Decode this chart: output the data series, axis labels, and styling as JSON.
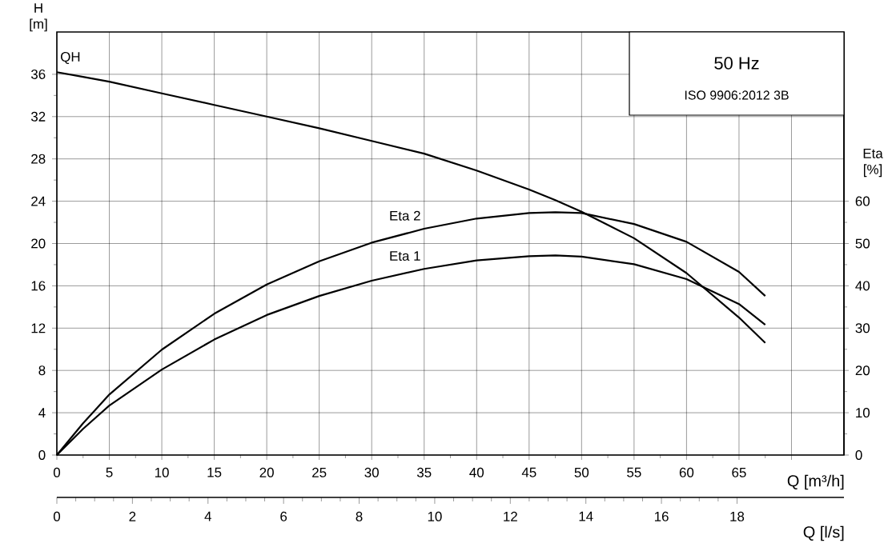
{
  "chart_data": {
    "type": "line",
    "xlabel": "Q [m³/h]",
    "ylabel": "H [m]",
    "y2label": "Eta [%]",
    "x2label": "Q [l/s]",
    "annotations": [
      "50 Hz",
      "ISO 9906:2012 3B"
    ],
    "x": [
      0,
      2.5,
      5,
      10,
      15,
      20,
      25,
      30,
      35,
      40,
      45,
      47.5,
      50,
      55,
      60,
      65,
      67.5
    ],
    "series": [
      {
        "name": "QH",
        "color": "#000000",
        "values": [
          36.2,
          35.75,
          35.3,
          34.2,
          33.1,
          32.0,
          30.9,
          29.7,
          28.5,
          26.9,
          25.1,
          24.1,
          23.0,
          20.5,
          17.2,
          13.0,
          10.6
        ]
      },
      {
        "name": "Eta 2",
        "color": "#000000",
        "axis": "y2",
        "values": [
          0,
          7.5,
          14.3,
          24.9,
          33.4,
          40.3,
          45.8,
          50.2,
          53.5,
          55.9,
          57.2,
          57.4,
          57.2,
          54.6,
          50.4,
          43.3,
          37.6
        ]
      },
      {
        "name": "Eta 1",
        "color": "#000000",
        "axis": "y2",
        "values": [
          0,
          6.2,
          11.7,
          20.2,
          27.3,
          33.1,
          37.6,
          41.2,
          44.0,
          46.0,
          47.0,
          47.2,
          46.9,
          45.1,
          41.6,
          35.7,
          30.8
        ]
      }
    ],
    "xlim": [
      0,
      75
    ],
    "xticks": [
      0,
      5,
      10,
      15,
      20,
      25,
      30,
      35,
      40,
      45,
      50,
      55,
      60,
      65,
      {
        "value": 70,
        "label": null
      }
    ],
    "ylim": [
      0,
      40
    ],
    "yticks": [
      0,
      4,
      8,
      12,
      16,
      20,
      24,
      28,
      32,
      36
    ],
    "y2lim": [
      0,
      100
    ],
    "y2ticks": [
      0,
      10,
      20,
      30,
      40,
      50,
      60
    ],
    "x2lim": [
      0,
      20.83
    ],
    "x2ticks": [
      0,
      2,
      4,
      6,
      8,
      10,
      12,
      14,
      16,
      18
    ],
    "grid": true,
    "marker": "none",
    "line_style": "solid"
  }
}
